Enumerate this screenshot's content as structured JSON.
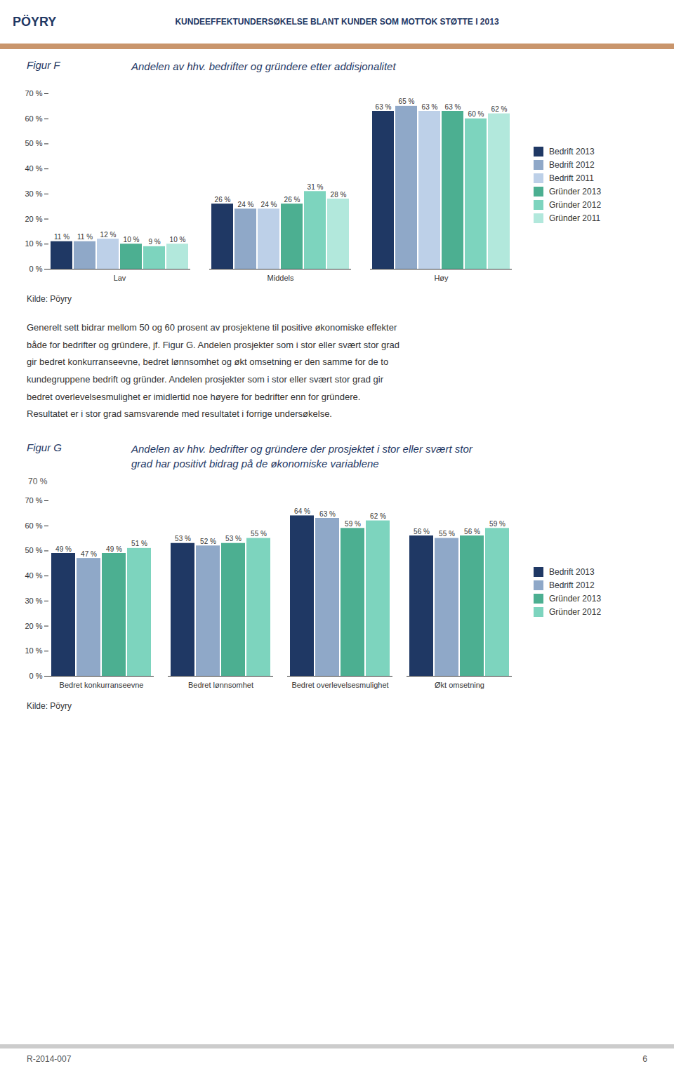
{
  "chart_data": [
    {
      "type": "bar",
      "title": "Andelen av hhv. bedrifter og gründere etter addisjonalitet",
      "annotations": [
        "PÖYRY",
        "KUNDEEFFEKTUNDERSØKELSE BLANT KUNDER SOM MOTTOK STØTTE I 2013",
        "Figur F",
        "Kilde: Pöyry",
        "Generelt sett bidrar mellom 50 og 60 prosent av prosjektene til positive økonomiske effekter",
        "både for bedrifter og gründere, jf. Figur G. Andelen prosjekter som i stor eller svært stor grad",
        "gir bedret konkurranseevne, bedret lønnsomhet og økt omsetning er den samme for de to",
        "kundegruppene bedrift og gründer. Andelen prosjekter som i stor eller svært stor grad gir",
        "bedret overlevelsesmulighet er imidlertid noe høyere for bedrifter enn for gründere.",
        "Resultatet er i stor grad samsvarende med resultatet i forrige undersøkelse."
      ],
      "categories": [
        "Lav",
        "Middels",
        "Høy"
      ],
      "series": [
        {
          "name": "Bedrift 2013",
          "color": "#1F3864",
          "values": [
            11,
            26,
            63
          ],
          "value_labels": [
            "11 %",
            "26 %",
            "63 %"
          ]
        },
        {
          "name": "Bedrift 2012",
          "color": "#8FA8C8",
          "values": [
            11,
            24,
            65
          ],
          "value_labels": [
            "11 %",
            "24 %",
            "65 %"
          ]
        },
        {
          "name": "Bedrift 2011",
          "color": "#BDD0E8",
          "values": [
            12,
            24,
            63
          ],
          "value_labels": [
            "12 %",
            "24 %",
            "63 %"
          ]
        },
        {
          "name": "Gründer 2013",
          "color": "#4CAF91",
          "values": [
            10,
            26,
            63
          ],
          "value_labels": [
            "10 %",
            "26 %",
            "63 %"
          ]
        },
        {
          "name": "Gründer 2012",
          "color": "#7DD4BE",
          "values": [
            9,
            31,
            60
          ],
          "value_labels": [
            "9 %",
            "31 %",
            "60 %"
          ]
        },
        {
          "name": "Gründer 2011",
          "color": "#B2E8DC",
          "values": [
            10,
            28,
            62
          ],
          "value_labels": [
            "10 %",
            "28 %",
            "62 %"
          ]
        }
      ],
      "ylim": [
        0,
        70
      ],
      "yticks": [
        {
          "value": 0,
          "label": "0 %"
        },
        {
          "value": 10,
          "label": "10 %"
        },
        {
          "value": 20,
          "label": "20 %"
        },
        {
          "value": 30,
          "label": "30 %"
        },
        {
          "value": 40,
          "label": "40 %"
        },
        {
          "value": 50,
          "label": "50 %"
        },
        {
          "value": 60,
          "label": "60 %"
        },
        {
          "value": 70,
          "label": "70 %"
        }
      ],
      "grid": false,
      "legend": "right",
      "data_labels": true
    },
    {
      "type": "bar",
      "title": "Andelen av hhv. bedrifter og gründere der prosjektet i stor eller svært stor\ngrad har positivt bidrag på de økonomiske variablene",
      "annotations": [
        "Figur G",
        "70 %",
        "Kilde: Pöyry",
        "R-2014-007",
        "6"
      ],
      "categories": [
        "Bedret konkurranseevne",
        "Bedret lønnsomhet",
        "Bedret overlevelsesmulighet",
        "Økt omsetning"
      ],
      "series": [
        {
          "name": "Bedrift 2013",
          "color": "#1F3864",
          "values": [
            49,
            53,
            64,
            56
          ],
          "value_labels": [
            "49 %",
            "53 %",
            "64 %",
            "56 %"
          ]
        },
        {
          "name": "Bedrift 2012",
          "color": "#8FA8C8",
          "values": [
            47,
            52,
            63,
            55
          ],
          "value_labels": [
            "47 %",
            "52 %",
            "63 %",
            "55 %"
          ]
        },
        {
          "name": "Gründer 2013",
          "color": "#4CAF91",
          "values": [
            49,
            53,
            59,
            56
          ],
          "value_labels": [
            "49 %",
            "53 %",
            "59 %",
            "56 %"
          ]
        },
        {
          "name": "Gründer 2012",
          "color": "#7DD4BE",
          "values": [
            51,
            55,
            62,
            59
          ],
          "value_labels": [
            "51 %",
            "55 %",
            "62 %",
            "59 %"
          ]
        }
      ],
      "ylim": [
        0,
        70
      ],
      "yticks": [
        {
          "value": 0,
          "label": "0 %"
        },
        {
          "value": 10,
          "label": "10 %"
        },
        {
          "value": 20,
          "label": "20 %"
        },
        {
          "value": 30,
          "label": "30 %"
        },
        {
          "value": 40,
          "label": "40 %"
        },
        {
          "value": 50,
          "label": "50 %"
        },
        {
          "value": 60,
          "label": "60 %"
        },
        {
          "value": 70,
          "label": "70 %"
        }
      ],
      "grid": false,
      "legend": "right",
      "data_labels": true
    }
  ]
}
